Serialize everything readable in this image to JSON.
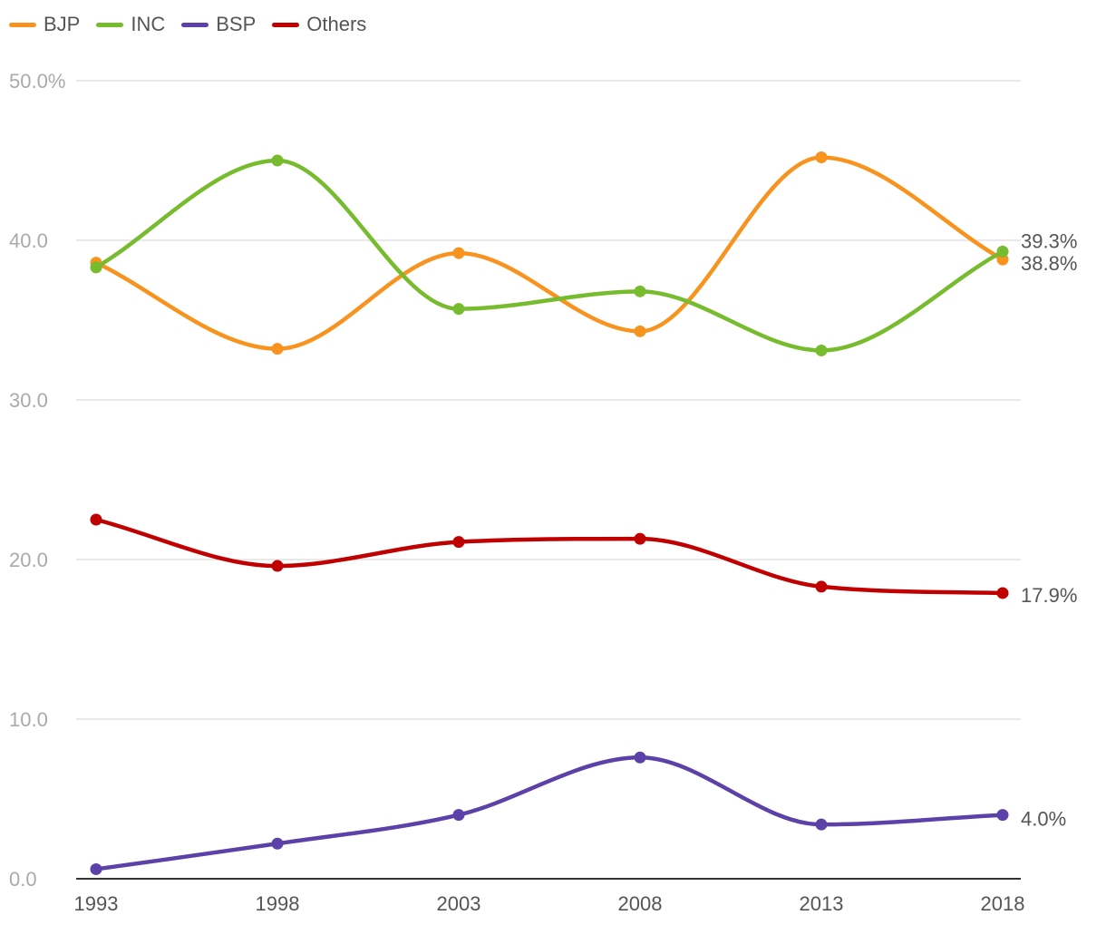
{
  "chart_data": {
    "type": "line",
    "categories": [
      "1993",
      "1998",
      "2003",
      "2008",
      "2013",
      "2018"
    ],
    "ylim": [
      0,
      50
    ],
    "yticks": [
      {
        "value": 0,
        "label": "0.0"
      },
      {
        "value": 10,
        "label": "10.0"
      },
      {
        "value": 20,
        "label": "20.0"
      },
      {
        "value": 30,
        "label": "30.0"
      },
      {
        "value": 40,
        "label": "40.0"
      },
      {
        "value": 50,
        "label": "50.0%"
      }
    ],
    "grid": true,
    "legend_position": "top-left",
    "series": [
      {
        "name": "BJP",
        "color": "#f7931e",
        "values": [
          38.6,
          33.2,
          39.2,
          34.3,
          45.2,
          38.8
        ],
        "end_label": "38.8%"
      },
      {
        "name": "INC",
        "color": "#77bb2f",
        "values": [
          38.3,
          45.0,
          35.7,
          36.8,
          33.1,
          39.3
        ],
        "end_label": "39.3%"
      },
      {
        "name": "BSP",
        "color": "#5b41a8",
        "values": [
          0.6,
          2.2,
          4.0,
          7.6,
          3.4,
          4.0
        ],
        "end_label": "4.0%"
      },
      {
        "name": "Others",
        "color": "#c00000",
        "values": [
          22.5,
          19.6,
          21.1,
          21.3,
          18.3,
          17.9
        ],
        "end_label": "17.9%"
      }
    ]
  }
}
